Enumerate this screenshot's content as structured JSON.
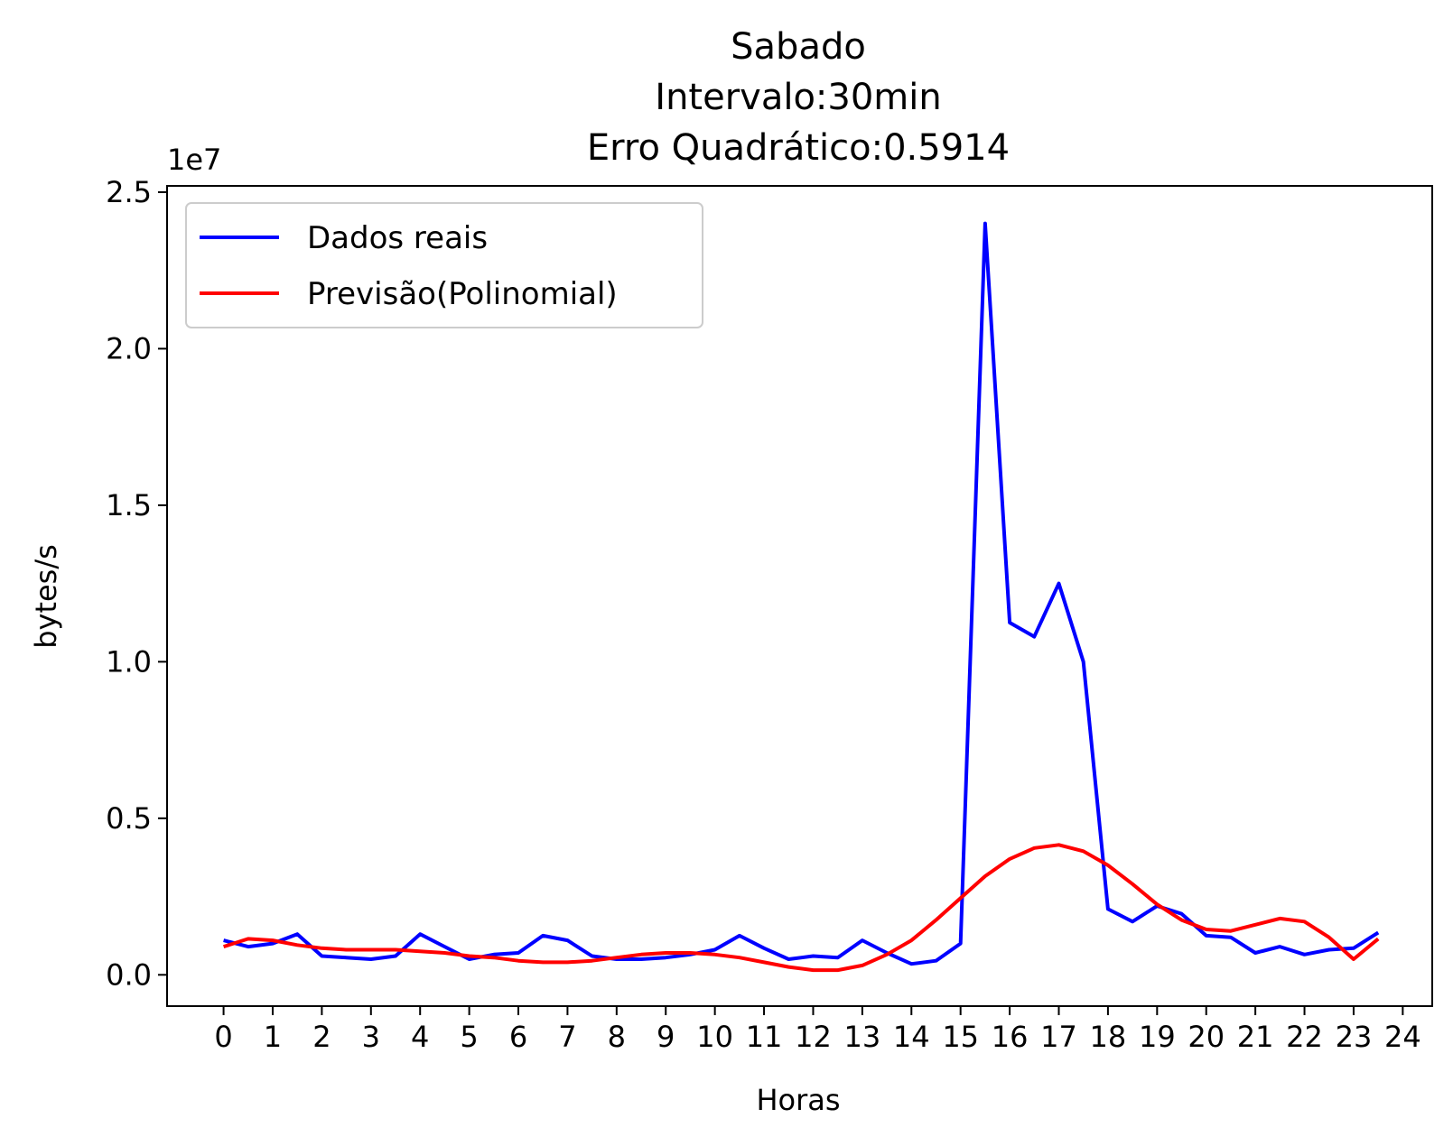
{
  "chart_data": {
    "type": "line",
    "title_lines": [
      "Sabado",
      "Intervalo:30min",
      "Erro Quadrático:0.5914"
    ],
    "xlabel": "Horas",
    "ylabel": "bytes/s",
    "y_offset_label": "1e7",
    "xlim": [
      -1.15,
      24.6
    ],
    "ylim": [
      -1.0,
      25.2
    ],
    "x_ticks": [
      0,
      1,
      2,
      3,
      4,
      5,
      6,
      7,
      8,
      9,
      10,
      11,
      12,
      13,
      14,
      15,
      16,
      17,
      18,
      19,
      20,
      21,
      22,
      23,
      24
    ],
    "x_tick_labels": [
      "0",
      "1",
      "2",
      "3",
      "4",
      "5",
      "6",
      "7",
      "8",
      "9",
      "10",
      "11",
      "12",
      "13",
      "14",
      "15",
      "16",
      "17",
      "18",
      "19",
      "20",
      "21",
      "22",
      "23",
      "24"
    ],
    "y_ticks": [
      0,
      5,
      10,
      15,
      20,
      25
    ],
    "y_tick_labels": [
      "0.0",
      "0.5",
      "1.0",
      "1.5",
      "2.0",
      "2.5"
    ],
    "legend_position": "upper-left",
    "grid": false,
    "series": [
      {
        "name": "Dados reais",
        "color": "#0000ff",
        "x": [
          0,
          0.5,
          1,
          1.5,
          2,
          2.5,
          3,
          3.5,
          4,
          4.5,
          5,
          5.5,
          6,
          6.5,
          7,
          7.5,
          8,
          8.5,
          9,
          9.5,
          10,
          10.5,
          11,
          11.5,
          12,
          12.5,
          13,
          13.5,
          14,
          14.5,
          15,
          15.5,
          16,
          16.5,
          17,
          17.5,
          18,
          18.5,
          19,
          19.5,
          20,
          20.5,
          21,
          21.5,
          22,
          22.5,
          23,
          23.5
        ],
        "values": [
          1.1,
          0.9,
          1.0,
          1.3,
          0.6,
          0.55,
          0.5,
          0.6,
          1.3,
          0.9,
          0.5,
          0.65,
          0.7,
          1.25,
          1.1,
          0.6,
          0.5,
          0.5,
          0.55,
          0.65,
          0.8,
          1.25,
          0.85,
          0.5,
          0.6,
          0.55,
          1.1,
          0.7,
          0.35,
          0.45,
          1.0,
          24.0,
          11.25,
          10.8,
          12.5,
          10.0,
          2.1,
          1.7,
          2.2,
          1.95,
          1.25,
          1.2,
          0.7,
          0.9,
          0.65,
          0.8,
          0.85,
          1.35
        ]
      },
      {
        "name": "Previsão(Polinomial)",
        "color": "#ff0000",
        "x": [
          0,
          0.5,
          1,
          1.5,
          2,
          2.5,
          3,
          3.5,
          4,
          4.5,
          5,
          5.5,
          6,
          6.5,
          7,
          7.5,
          8,
          8.5,
          9,
          9.5,
          10,
          10.5,
          11,
          11.5,
          12,
          12.5,
          13,
          13.5,
          14,
          14.5,
          15,
          15.5,
          16,
          16.5,
          17,
          17.5,
          18,
          18.5,
          19,
          19.5,
          20,
          20.5,
          21,
          21.5,
          22,
          22.5,
          23,
          23.5
        ],
        "values": [
          0.9,
          1.15,
          1.1,
          0.95,
          0.85,
          0.8,
          0.8,
          0.8,
          0.75,
          0.7,
          0.6,
          0.55,
          0.45,
          0.4,
          0.4,
          0.45,
          0.55,
          0.65,
          0.7,
          0.7,
          0.65,
          0.55,
          0.4,
          0.25,
          0.15,
          0.15,
          0.3,
          0.65,
          1.1,
          1.75,
          2.45,
          3.15,
          3.7,
          4.05,
          4.15,
          3.95,
          3.5,
          2.9,
          2.25,
          1.75,
          1.45,
          1.4,
          1.6,
          1.8,
          1.7,
          1.2,
          0.5,
          1.15
        ]
      }
    ]
  }
}
